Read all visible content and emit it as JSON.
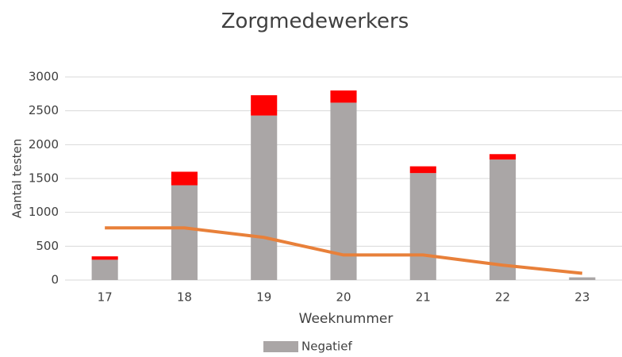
{
  "chart_data": {
    "type": "bar",
    "stacked": true,
    "title": "Zorgmedewerkers",
    "x_label": "Weeknummer",
    "y_label": "Aantal testen",
    "categories": [
      "17",
      "18",
      "19",
      "20",
      "21",
      "22",
      "23"
    ],
    "series": [
      {
        "name": "Negatief",
        "color": "#aaa6a6",
        "values": [
          300,
          1400,
          2430,
          2620,
          1580,
          1780,
          40
        ]
      },
      {
        "color": "#ff0000",
        "values": [
          50,
          200,
          300,
          180,
          100,
          80,
          0
        ]
      },
      {
        "type": "line",
        "color": "#e8803a",
        "values": [
          770,
          770,
          630,
          370,
          370,
          220,
          100
        ]
      }
    ],
    "ylim": [
      0,
      3000
    ],
    "yticks": [
      0,
      500,
      1000,
      1500,
      2000,
      2500,
      3000
    ],
    "grid": true,
    "legend": "bottom"
  }
}
